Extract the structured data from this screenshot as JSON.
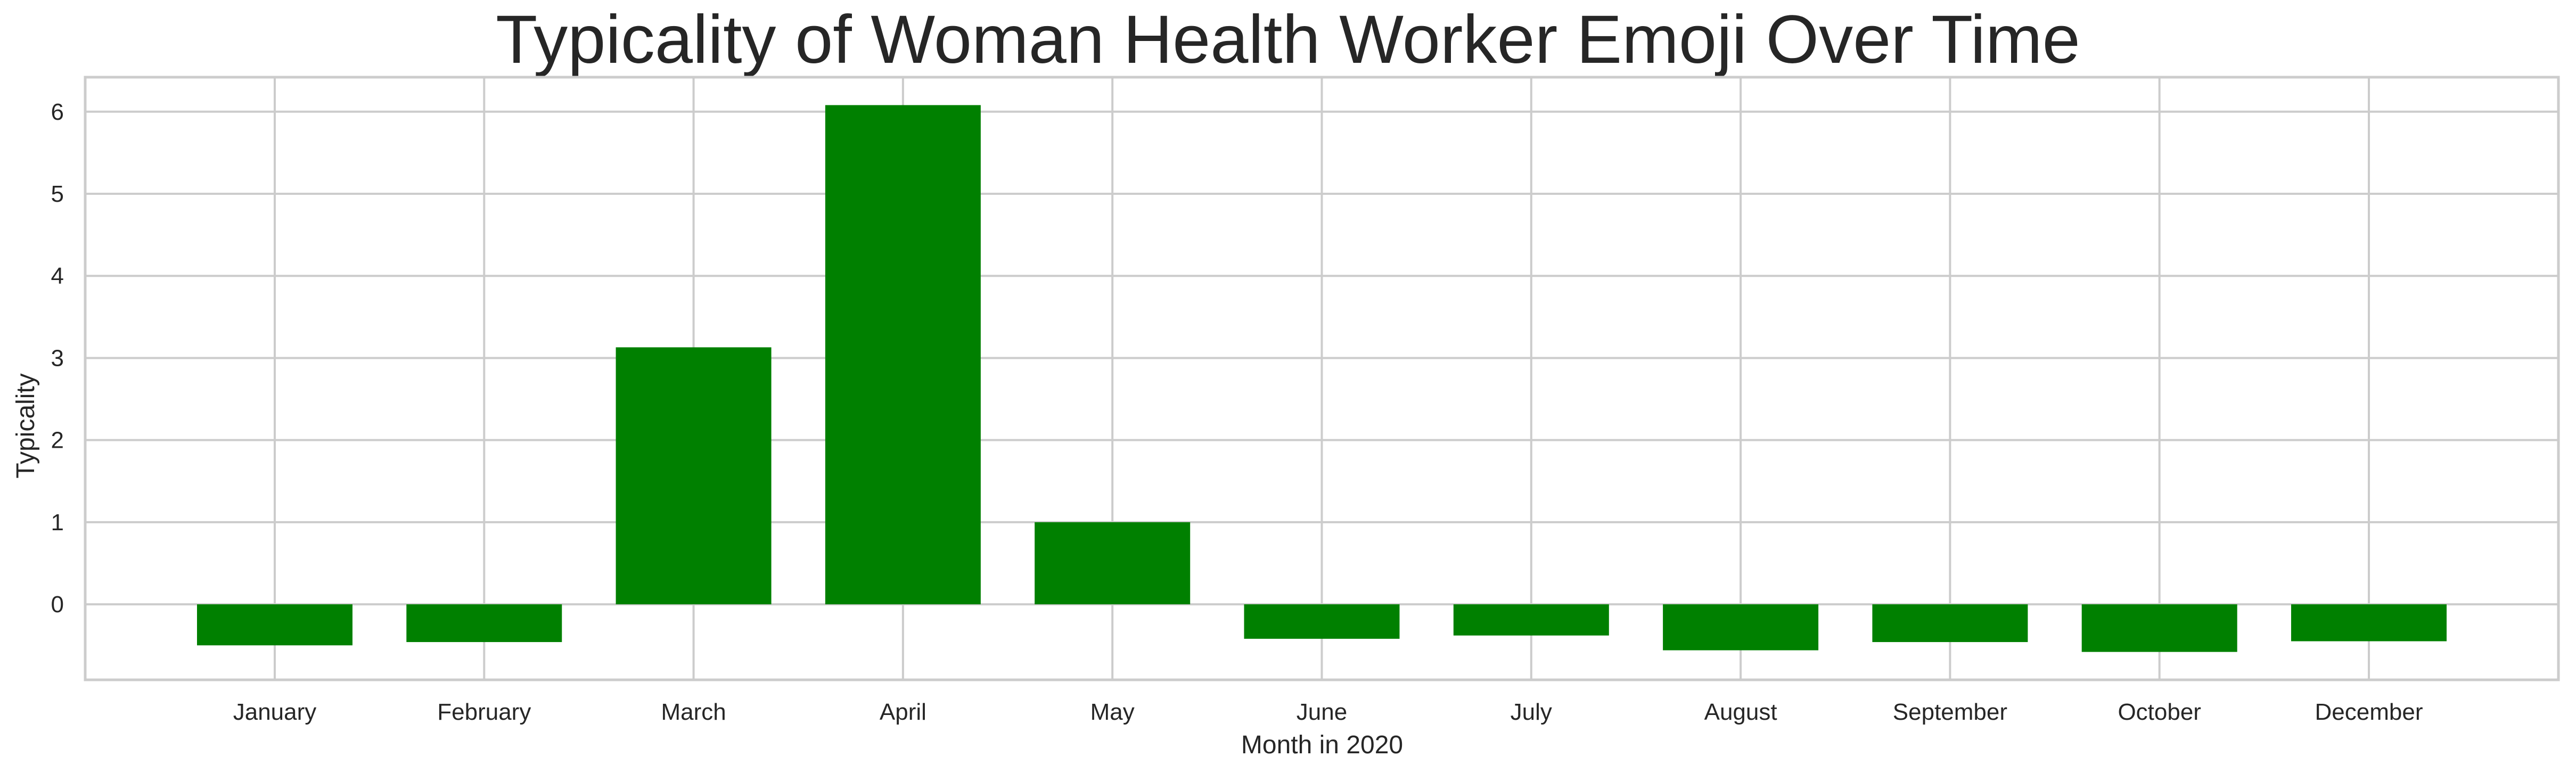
{
  "chart_data": {
    "type": "bar",
    "title": "Typicality of Woman Health Worker Emoji Over Time",
    "xlabel": "Month in 2020",
    "ylabel": "Typicality",
    "categories": [
      "January",
      "February",
      "March",
      "April",
      "May",
      "June",
      "July",
      "August",
      "September",
      "October",
      "December"
    ],
    "values": [
      -0.5,
      -0.46,
      3.13,
      6.08,
      1.0,
      -0.42,
      -0.38,
      -0.56,
      -0.46,
      -0.58,
      -0.45
    ],
    "yticks": [
      0,
      1,
      2,
      3,
      4,
      5,
      6
    ],
    "ylim": [
      -0.92,
      6.42
    ],
    "grid": true,
    "bar_color": "#008000"
  }
}
